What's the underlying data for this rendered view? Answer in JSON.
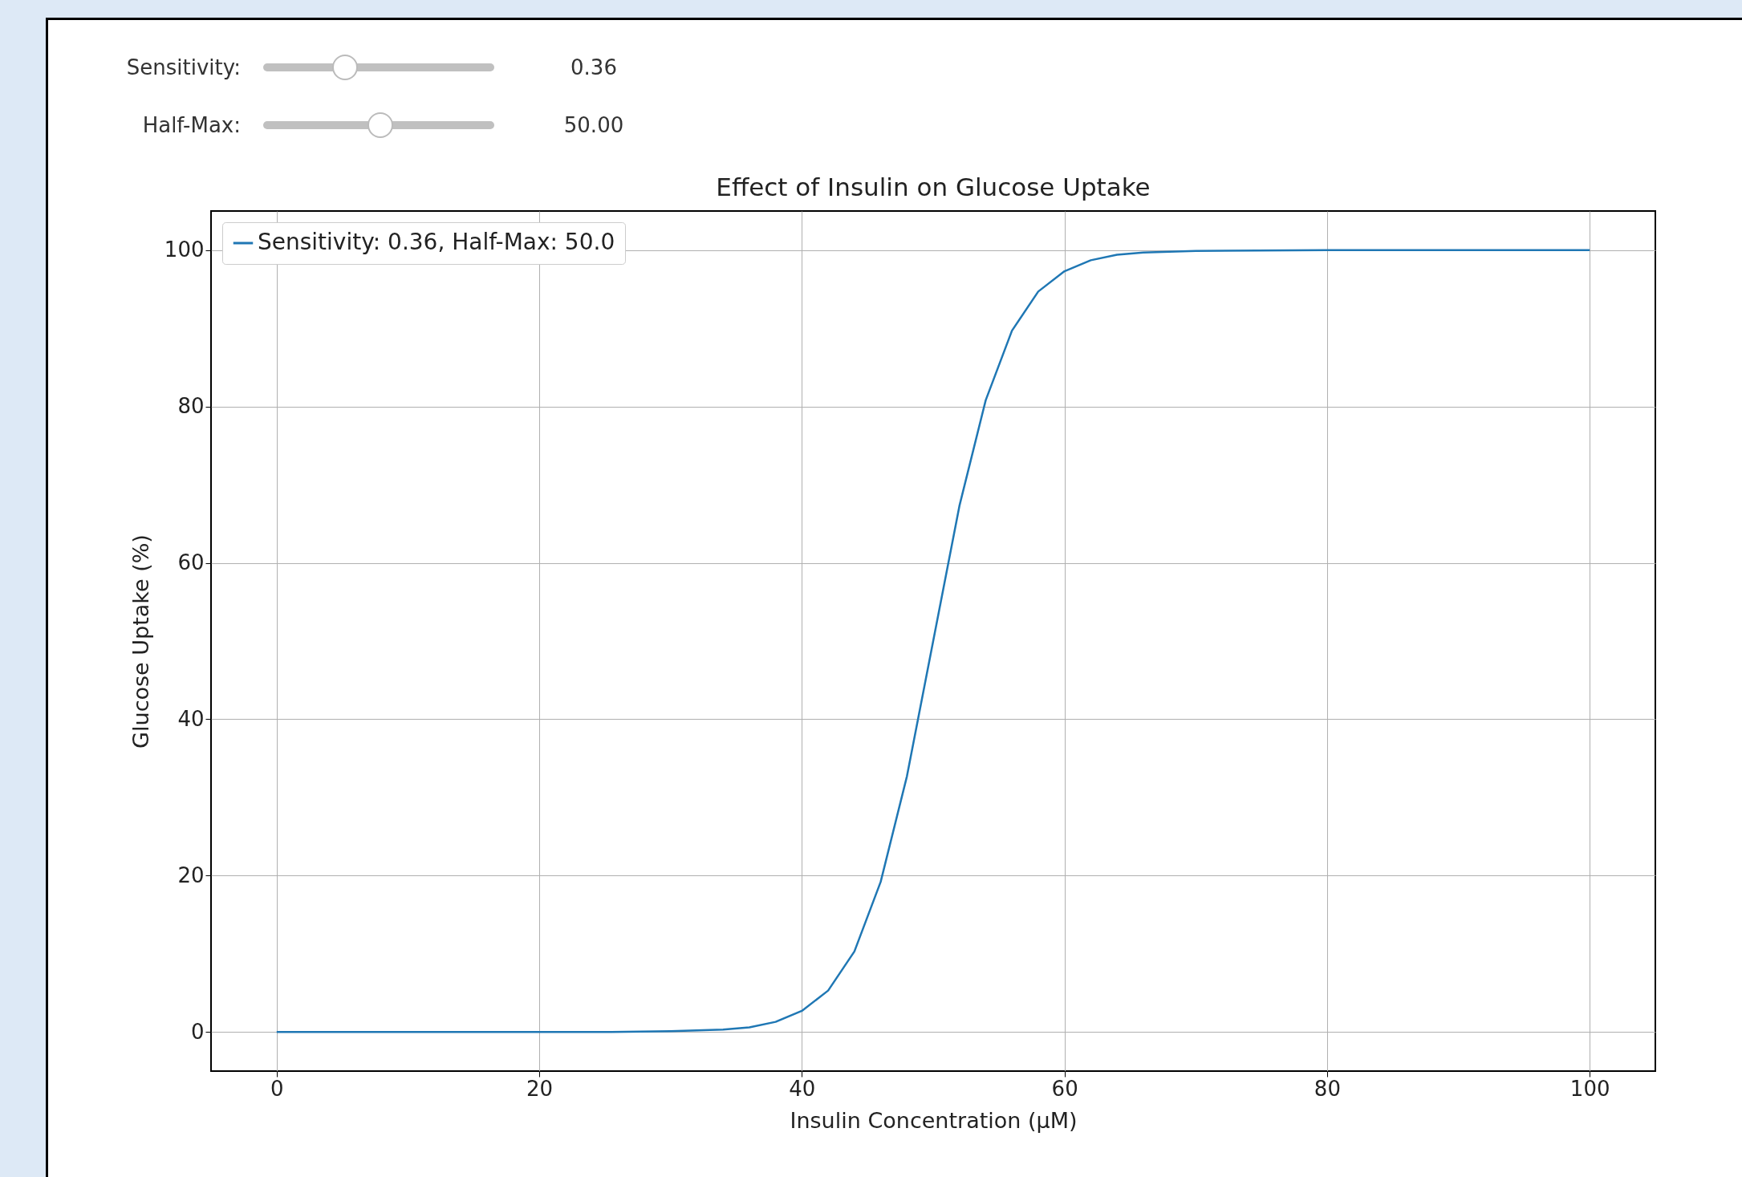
{
  "chart_data": {
    "type": "line",
    "title": "Effect of Insulin on Glucose Uptake",
    "xlabel": "Insulin Concentration (µM)",
    "ylabel": "Glucose Uptake (%)",
    "annotations": [
      "Sensitivity:",
      "0.36",
      "Half-Max:",
      "50.00"
    ],
    "x": [
      0,
      10,
      20,
      25,
      30,
      32,
      34,
      36,
      38,
      40,
      42,
      44,
      46,
      48,
      50,
      52,
      54,
      56,
      58,
      60,
      62,
      64,
      66,
      70,
      80,
      90,
      100
    ],
    "series": [
      {
        "name": "Sensitivity: 0.36, Half-Max: 50.0",
        "color": "#1f77b4",
        "values": [
          0,
          0,
          0,
          0,
          0.1,
          0.2,
          0.3,
          0.6,
          1.3,
          2.7,
          5.3,
          10.3,
          19.2,
          32.7,
          50,
          67.3,
          80.8,
          89.7,
          94.7,
          97.3,
          98.7,
          99.4,
          99.7,
          99.9,
          100,
          100,
          100
        ]
      }
    ],
    "xlim": [
      -5,
      105
    ],
    "ylim": [
      -5,
      105
    ],
    "xticks": [
      0,
      20,
      40,
      60,
      80,
      100
    ],
    "yticks": [
      0,
      20,
      40,
      60,
      80,
      100
    ],
    "grid": true,
    "legend": "top left",
    "marker": "none",
    "line_style": "solid"
  }
}
